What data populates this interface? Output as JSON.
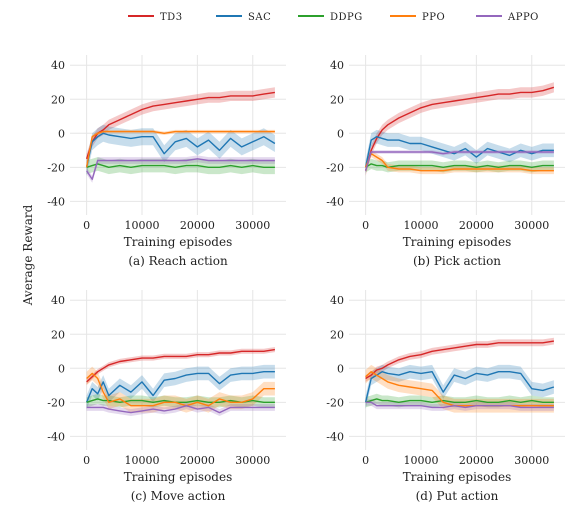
{
  "figure": {
    "ylabel": "Average Reward",
    "legend": [
      {
        "name": "TD3",
        "color": "#d62728"
      },
      {
        "name": "SAC",
        "color": "#1f77b4"
      },
      {
        "name": "DDPG",
        "color": "#2ca02c"
      },
      {
        "name": "PPO",
        "color": "#ff7f0e"
      },
      {
        "name": "APPO",
        "color": "#9467bd"
      }
    ]
  },
  "chart_data": [
    {
      "type": "line",
      "caption": "(a) Reach action",
      "xlabel": "Training episodes",
      "ylabel": "Average Reward",
      "xlim": [
        -3000,
        36000
      ],
      "ylim": [
        -48,
        46
      ],
      "xticks": [
        0,
        10000,
        20000,
        30000
      ],
      "yticks": [
        -40,
        -20,
        0,
        20,
        40
      ],
      "legend_position": "top",
      "grid": true,
      "x": [
        0,
        1000,
        2000,
        3000,
        4000,
        6000,
        8000,
        10000,
        12000,
        14000,
        16000,
        18000,
        20000,
        22000,
        24000,
        26000,
        28000,
        30000,
        32000,
        34000
      ],
      "series": [
        {
          "name": "TD3",
          "color": "#d62728",
          "band": 3,
          "values": [
            -15,
            -5,
            0,
            2,
            5,
            8,
            11,
            14,
            16,
            17,
            18,
            19,
            20,
            21,
            21,
            22,
            22,
            22,
            23,
            24
          ]
        },
        {
          "name": "SAC",
          "color": "#1f77b4",
          "band": 5,
          "values": [
            -20,
            -5,
            -2,
            0,
            -1,
            -2,
            -3,
            -2,
            -2,
            -12,
            -5,
            -3,
            -8,
            -4,
            -10,
            -3,
            -8,
            -5,
            -2,
            -6
          ]
        },
        {
          "name": "DDPG",
          "color": "#2ca02c",
          "band": 4,
          "values": [
            -20,
            -19,
            -18,
            -19,
            -20,
            -19,
            -20,
            -19,
            -19,
            -19,
            -20,
            -19,
            -19,
            -20,
            -20,
            -19,
            -20,
            -19,
            -20,
            -20
          ]
        },
        {
          "name": "PPO",
          "color": "#ff7f0e",
          "band": 1,
          "values": [
            -20,
            -2,
            0,
            1,
            1,
            1,
            1,
            1,
            1,
            0,
            1,
            1,
            1,
            1,
            1,
            1,
            1,
            1,
            1,
            1
          ]
        },
        {
          "name": "APPO",
          "color": "#9467bd",
          "band": 2,
          "values": [
            -22,
            -27,
            -16,
            -16,
            -16,
            -16,
            -16,
            -16,
            -16,
            -16,
            -16,
            -16,
            -15,
            -16,
            -16,
            -16,
            -16,
            -16,
            -16,
            -16
          ]
        }
      ]
    },
    {
      "type": "line",
      "caption": "(b) Pick action",
      "xlabel": "Training episodes",
      "ylabel": "",
      "xlim": [
        -3000,
        36000
      ],
      "ylim": [
        -48,
        46
      ],
      "xticks": [
        0,
        10000,
        20000,
        30000
      ],
      "yticks": [
        -40,
        -20,
        0,
        20,
        40
      ],
      "legend_position": "top",
      "grid": true,
      "x": [
        0,
        1000,
        2000,
        3000,
        4000,
        6000,
        8000,
        10000,
        12000,
        14000,
        16000,
        18000,
        20000,
        22000,
        24000,
        26000,
        28000,
        30000,
        32000,
        34000
      ],
      "series": [
        {
          "name": "TD3",
          "color": "#d62728",
          "band": 3,
          "values": [
            -22,
            -10,
            -3,
            2,
            5,
            9,
            12,
            15,
            17,
            18,
            19,
            20,
            21,
            22,
            23,
            23,
            24,
            24,
            25,
            27
          ]
        },
        {
          "name": "SAC",
          "color": "#1f77b4",
          "band": 4,
          "values": [
            -20,
            -4,
            -2,
            -3,
            -4,
            -4,
            -6,
            -6,
            -8,
            -10,
            -12,
            -9,
            -14,
            -9,
            -11,
            -13,
            -10,
            -12,
            -10,
            -10
          ]
        },
        {
          "name": "DDPG",
          "color": "#2ca02c",
          "band": 3,
          "values": [
            -20,
            -18,
            -19,
            -19,
            -20,
            -19,
            -19,
            -19,
            -19,
            -20,
            -19,
            -19,
            -20,
            -19,
            -20,
            -19,
            -19,
            -20,
            -19,
            -19
          ]
        },
        {
          "name": "PPO",
          "color": "#ff7f0e",
          "band": 2,
          "values": [
            -20,
            -12,
            -14,
            -16,
            -20,
            -21,
            -21,
            -22,
            -22,
            -22,
            -21,
            -21,
            -21,
            -21,
            -21,
            -21,
            -21,
            -22,
            -22,
            -22
          ]
        },
        {
          "name": "APPO",
          "color": "#9467bd",
          "band": 1,
          "values": [
            -22,
            -11,
            -11,
            -11,
            -11,
            -11,
            -11,
            -11,
            -11,
            -12,
            -11,
            -11,
            -11,
            -11,
            -11,
            -11,
            -11,
            -11,
            -11,
            -11
          ]
        }
      ]
    },
    {
      "type": "line",
      "caption": "(c) Move action",
      "xlabel": "Training episodes",
      "ylabel": "",
      "xlim": [
        -3000,
        36000
      ],
      "ylim": [
        -48,
        46
      ],
      "xticks": [
        0,
        10000,
        20000,
        30000
      ],
      "yticks": [
        -40,
        -20,
        0,
        20,
        40
      ],
      "legend_position": "top",
      "grid": true,
      "x": [
        0,
        1000,
        2000,
        3000,
        4000,
        6000,
        8000,
        10000,
        12000,
        14000,
        16000,
        18000,
        20000,
        22000,
        24000,
        26000,
        28000,
        30000,
        32000,
        34000
      ],
      "series": [
        {
          "name": "TD3",
          "color": "#d62728",
          "band": 1.5,
          "values": [
            -8,
            -5,
            -2,
            0,
            2,
            4,
            5,
            6,
            6,
            7,
            7,
            7,
            8,
            8,
            9,
            9,
            10,
            10,
            10,
            11
          ]
        },
        {
          "name": "SAC",
          "color": "#1f77b4",
          "band": 4,
          "values": [
            -20,
            -12,
            -15,
            -8,
            -16,
            -10,
            -14,
            -8,
            -16,
            -7,
            -6,
            -4,
            -3,
            -3,
            -9,
            -4,
            -3,
            -3,
            -2,
            -2
          ]
        },
        {
          "name": "DDPG",
          "color": "#2ca02c",
          "band": 3,
          "values": [
            -20,
            -19,
            -18,
            -19,
            -19,
            -20,
            -19,
            -19,
            -20,
            -19,
            -20,
            -20,
            -19,
            -20,
            -20,
            -19,
            -20,
            -19,
            -20,
            -20
          ]
        },
        {
          "name": "PPO",
          "color": "#ff7f0e",
          "band": 4,
          "values": [
            -6,
            -3,
            -6,
            -14,
            -20,
            -18,
            -22,
            -22,
            -22,
            -20,
            -20,
            -22,
            -20,
            -22,
            -18,
            -20,
            -20,
            -18,
            -12,
            -12
          ]
        },
        {
          "name": "APPO",
          "color": "#9467bd",
          "band": 2,
          "values": [
            -23,
            -23,
            -23,
            -23,
            -24,
            -25,
            -26,
            -25,
            -24,
            -25,
            -24,
            -22,
            -24,
            -23,
            -26,
            -23,
            -23,
            -23,
            -23,
            -23
          ]
        }
      ]
    },
    {
      "type": "line",
      "caption": "(d) Put action",
      "xlabel": "Training episodes",
      "ylabel": "",
      "xlim": [
        -3000,
        36000
      ],
      "ylim": [
        -48,
        46
      ],
      "xticks": [
        0,
        10000,
        20000,
        30000
      ],
      "yticks": [
        -40,
        -20,
        0,
        20,
        40
      ],
      "legend_position": "top",
      "grid": true,
      "x": [
        0,
        1000,
        2000,
        3000,
        4000,
        6000,
        8000,
        10000,
        12000,
        14000,
        16000,
        18000,
        20000,
        22000,
        24000,
        26000,
        28000,
        30000,
        32000,
        34000
      ],
      "series": [
        {
          "name": "TD3",
          "color": "#d62728",
          "band": 2,
          "values": [
            -6,
            -4,
            -1,
            0,
            2,
            5,
            7,
            8,
            10,
            11,
            12,
            13,
            14,
            14,
            15,
            15,
            15,
            15,
            15,
            16
          ]
        },
        {
          "name": "SAC",
          "color": "#1f77b4",
          "band": 4,
          "values": [
            -20,
            -6,
            -4,
            -2,
            -3,
            -4,
            -2,
            -3,
            -2,
            -14,
            -4,
            -6,
            -3,
            -4,
            -2,
            -2,
            -3,
            -12,
            -13,
            -11
          ]
        },
        {
          "name": "DDPG",
          "color": "#2ca02c",
          "band": 3,
          "values": [
            -20,
            -19,
            -18,
            -19,
            -19,
            -20,
            -19,
            -19,
            -20,
            -19,
            -20,
            -20,
            -19,
            -20,
            -20,
            -19,
            -20,
            -19,
            -20,
            -20
          ]
        },
        {
          "name": "PPO",
          "color": "#ff7f0e",
          "band": 4,
          "values": [
            -5,
            -2,
            -4,
            -6,
            -8,
            -10,
            -11,
            -12,
            -13,
            -20,
            -22,
            -22,
            -22,
            -22,
            -22,
            -22,
            -22,
            -22,
            -22,
            -22
          ]
        },
        {
          "name": "APPO",
          "color": "#9467bd",
          "band": 2,
          "values": [
            -20,
            -20,
            -22,
            -22,
            -22,
            -22,
            -22,
            -22,
            -23,
            -23,
            -22,
            -23,
            -22,
            -22,
            -22,
            -22,
            -23,
            -23,
            -23,
            -23
          ]
        }
      ]
    }
  ]
}
